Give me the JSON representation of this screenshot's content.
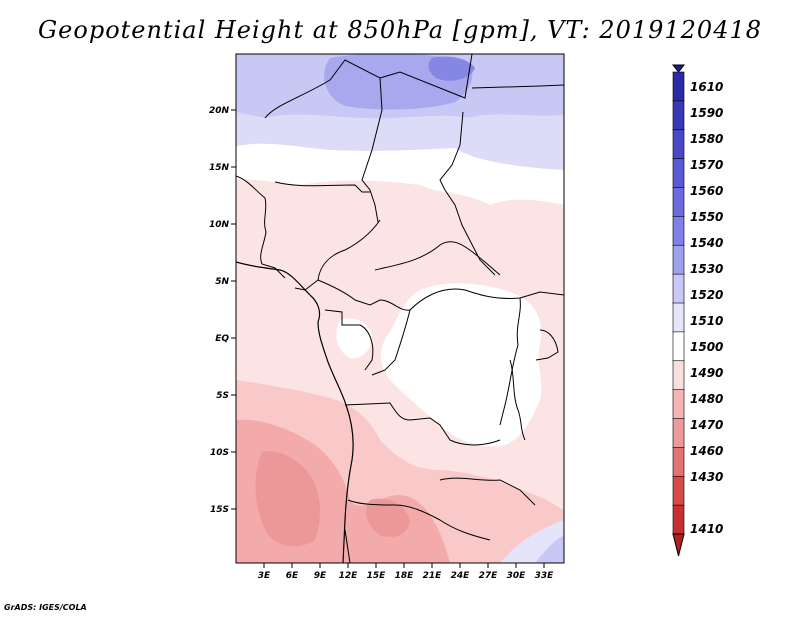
{
  "title": "Geopotential Height at 850hPa [gpm], VT: 2019120418",
  "credit": "GrADS: IGES/COLA",
  "map": {
    "lat_labels": [
      "20N",
      "15N",
      "10N",
      "5N",
      "EQ",
      "5S",
      "10S",
      "15S"
    ],
    "lon_labels": [
      "3E",
      "6E",
      "9E",
      "12E",
      "15E",
      "18E",
      "21E",
      "24E",
      "27E",
      "30E",
      "33E"
    ]
  },
  "legend": {
    "levels": [
      "1610",
      "1590",
      "1580",
      "1570",
      "1560",
      "1550",
      "1540",
      "1530",
      "1520",
      "1510",
      "1500",
      "1490",
      "1480",
      "1470",
      "1460",
      "1430",
      "1410"
    ],
    "colors": [
      "#1a1a8c",
      "#2a2aa6",
      "#3838b8",
      "#4848c8",
      "#5a5ad6",
      "#6c6ce0",
      "#8080ea",
      "#a0a0f0",
      "#c8c8f6",
      "#e4e4fa",
      "#ffffff",
      "#fcdede",
      "#f6b4b4",
      "#ee9a9a",
      "#e47474",
      "#d84a4a",
      "#c83030",
      "#b02020"
    ]
  },
  "colors": {
    "land_boundary": "#000000"
  }
}
